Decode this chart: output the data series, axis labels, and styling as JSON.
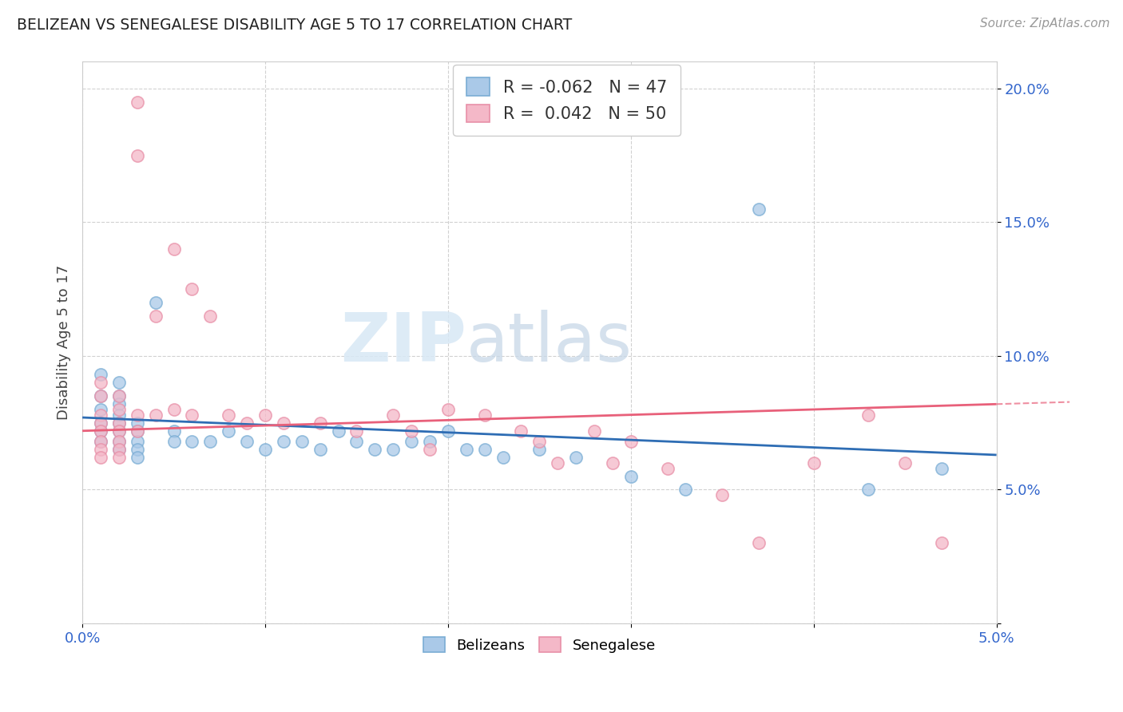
{
  "title": "BELIZEAN VS SENEGALESE DISABILITY AGE 5 TO 17 CORRELATION CHART",
  "source_text": "Source: ZipAtlas.com",
  "ylabel": "Disability Age 5 to 17",
  "xlim": [
    0.0,
    0.05
  ],
  "ylim": [
    0.0,
    0.21
  ],
  "belizean_color": "#aac9e8",
  "senegalese_color": "#f4b8c8",
  "belizean_edge_color": "#7aadd4",
  "senegalese_edge_color": "#e890a8",
  "belizean_line_color": "#2e6db4",
  "senegalese_line_color": "#e8607a",
  "R_belizean": -0.062,
  "N_belizean": 47,
  "R_senegalese": 0.042,
  "N_senegalese": 50,
  "watermark": "ZIPatlas",
  "belizean_points": [
    [
      0.001,
      0.093
    ],
    [
      0.001,
      0.085
    ],
    [
      0.001,
      0.08
    ],
    [
      0.001,
      0.075
    ],
    [
      0.001,
      0.072
    ],
    [
      0.001,
      0.068
    ],
    [
      0.002,
      0.09
    ],
    [
      0.002,
      0.085
    ],
    [
      0.002,
      0.082
    ],
    [
      0.002,
      0.078
    ],
    [
      0.002,
      0.075
    ],
    [
      0.002,
      0.072
    ],
    [
      0.002,
      0.068
    ],
    [
      0.002,
      0.065
    ],
    [
      0.003,
      0.075
    ],
    [
      0.003,
      0.072
    ],
    [
      0.003,
      0.068
    ],
    [
      0.003,
      0.065
    ],
    [
      0.003,
      0.062
    ],
    [
      0.004,
      0.12
    ],
    [
      0.005,
      0.072
    ],
    [
      0.005,
      0.068
    ],
    [
      0.006,
      0.068
    ],
    [
      0.007,
      0.068
    ],
    [
      0.008,
      0.072
    ],
    [
      0.009,
      0.068
    ],
    [
      0.01,
      0.065
    ],
    [
      0.011,
      0.068
    ],
    [
      0.012,
      0.068
    ],
    [
      0.013,
      0.065
    ],
    [
      0.014,
      0.072
    ],
    [
      0.015,
      0.068
    ],
    [
      0.016,
      0.065
    ],
    [
      0.017,
      0.065
    ],
    [
      0.018,
      0.068
    ],
    [
      0.019,
      0.068
    ],
    [
      0.02,
      0.072
    ],
    [
      0.021,
      0.065
    ],
    [
      0.022,
      0.065
    ],
    [
      0.023,
      0.062
    ],
    [
      0.025,
      0.065
    ],
    [
      0.027,
      0.062
    ],
    [
      0.03,
      0.055
    ],
    [
      0.033,
      0.05
    ],
    [
      0.037,
      0.155
    ],
    [
      0.043,
      0.05
    ],
    [
      0.047,
      0.058
    ]
  ],
  "senegalese_points": [
    [
      0.001,
      0.09
    ],
    [
      0.001,
      0.085
    ],
    [
      0.001,
      0.078
    ],
    [
      0.001,
      0.075
    ],
    [
      0.001,
      0.072
    ],
    [
      0.001,
      0.068
    ],
    [
      0.001,
      0.065
    ],
    [
      0.001,
      0.062
    ],
    [
      0.002,
      0.085
    ],
    [
      0.002,
      0.08
    ],
    [
      0.002,
      0.075
    ],
    [
      0.002,
      0.072
    ],
    [
      0.002,
      0.068
    ],
    [
      0.002,
      0.065
    ],
    [
      0.002,
      0.062
    ],
    [
      0.003,
      0.195
    ],
    [
      0.003,
      0.175
    ],
    [
      0.003,
      0.078
    ],
    [
      0.003,
      0.072
    ],
    [
      0.004,
      0.115
    ],
    [
      0.004,
      0.078
    ],
    [
      0.005,
      0.14
    ],
    [
      0.005,
      0.08
    ],
    [
      0.006,
      0.125
    ],
    [
      0.006,
      0.078
    ],
    [
      0.007,
      0.115
    ],
    [
      0.008,
      0.078
    ],
    [
      0.009,
      0.075
    ],
    [
      0.01,
      0.078
    ],
    [
      0.011,
      0.075
    ],
    [
      0.013,
      0.075
    ],
    [
      0.015,
      0.072
    ],
    [
      0.017,
      0.078
    ],
    [
      0.018,
      0.072
    ],
    [
      0.019,
      0.065
    ],
    [
      0.02,
      0.08
    ],
    [
      0.022,
      0.078
    ],
    [
      0.024,
      0.072
    ],
    [
      0.025,
      0.068
    ],
    [
      0.026,
      0.06
    ],
    [
      0.028,
      0.072
    ],
    [
      0.029,
      0.06
    ],
    [
      0.03,
      0.068
    ],
    [
      0.032,
      0.058
    ],
    [
      0.035,
      0.048
    ],
    [
      0.037,
      0.03
    ],
    [
      0.04,
      0.06
    ],
    [
      0.043,
      0.078
    ],
    [
      0.045,
      0.06
    ],
    [
      0.047,
      0.03
    ]
  ]
}
